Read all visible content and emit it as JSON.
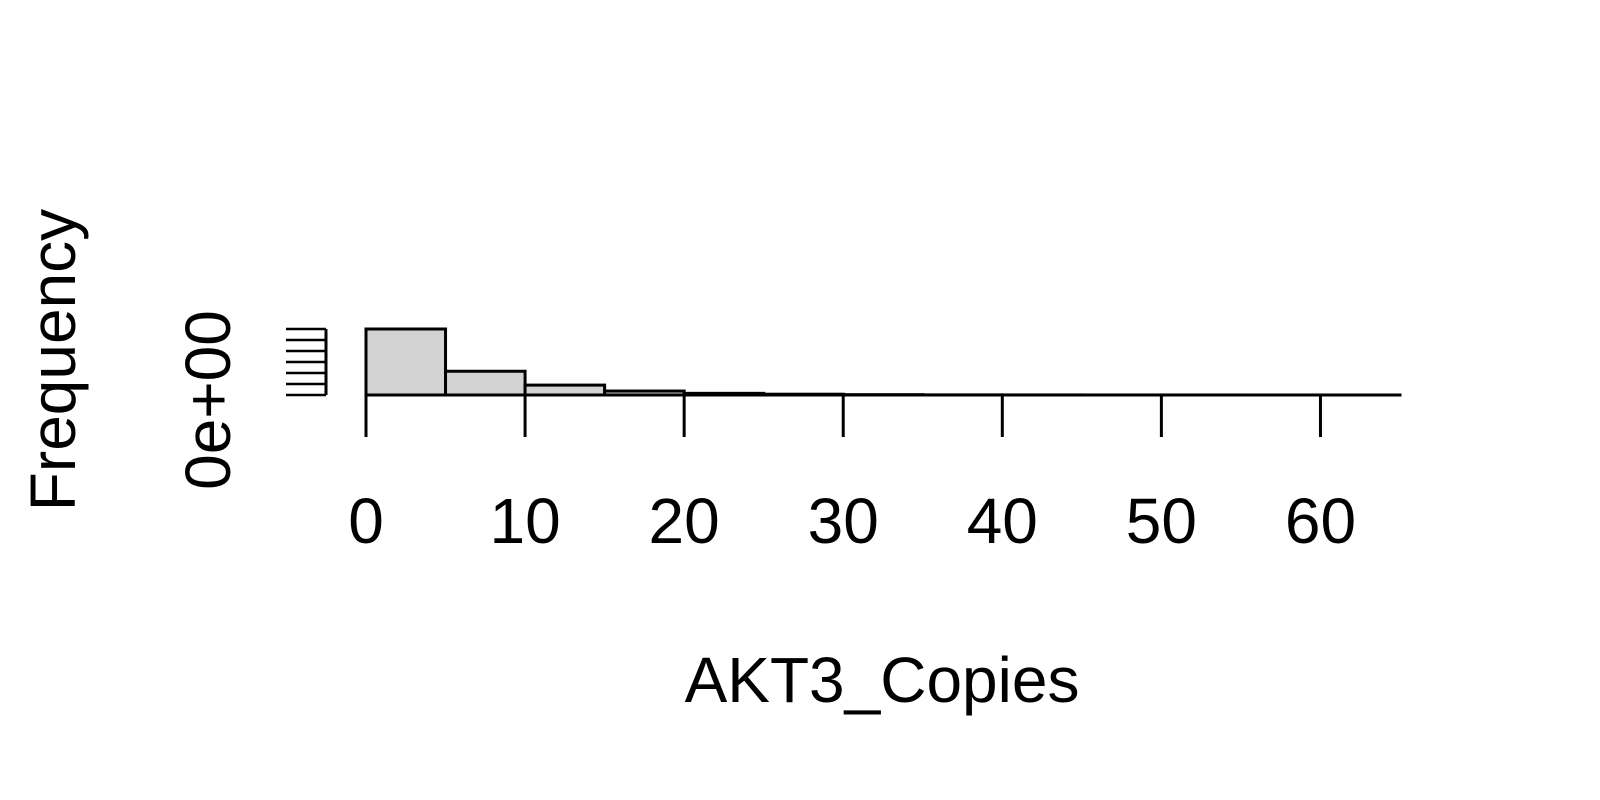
{
  "chart_data": {
    "type": "bar",
    "title": "",
    "xlabel": "AKT3_Copies",
    "ylabel": "Frequency",
    "bin_edges": [
      0,
      5,
      10,
      15,
      20,
      25,
      30,
      35,
      40,
      45,
      50,
      55,
      60,
      65
    ],
    "values": [
      1.0,
      0.36,
      0.15,
      0.06,
      0.025,
      0.012,
      0.005,
      0.002,
      0.001,
      0.0005,
      0.0003,
      0.0002,
      0.0001
    ],
    "xlim": [
      0,
      65
    ],
    "ylim": [
      0,
      1
    ],
    "x_ticks": [
      0,
      10,
      20,
      30,
      40,
      50,
      60
    ],
    "x_tick_labels": [
      "0",
      "10",
      "20",
      "30",
      "40",
      "50",
      "60"
    ],
    "y_tick_label": "0e+00",
    "y_minor_tick_count": 7,
    "colors": {
      "bar_fill": "#d3d3d3",
      "stroke": "#000000",
      "background": "#ffffff"
    },
    "grid": false,
    "legend": "none"
  }
}
